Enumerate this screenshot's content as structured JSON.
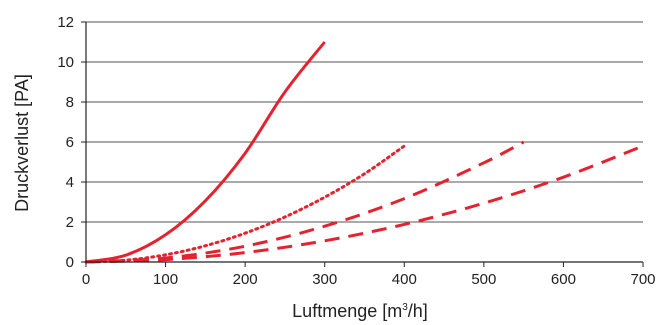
{
  "chart_data": {
    "type": "line",
    "xlabel": "Luftmenge [m",
    "xlabel_sup": "3",
    "xlabel_suffix": "/h]",
    "ylabel": "Druckverlust [PA]",
    "xlim": [
      0,
      700
    ],
    "ylim": [
      0,
      12
    ],
    "x_ticks": [
      "0",
      "100",
      "200",
      "300",
      "400",
      "500",
      "600",
      "700"
    ],
    "y_ticks": [
      "0",
      "2",
      "4",
      "6",
      "8",
      "10",
      "12"
    ],
    "grid": "horizontal",
    "colors": {
      "series": "#e3232f",
      "grid": "#555555",
      "axis": "#222222"
    },
    "series": [
      {
        "style": "solid",
        "x": [
          0,
          50,
          100,
          150,
          200,
          250,
          300
        ],
        "y": [
          0,
          0.34,
          1.36,
          3.06,
          5.44,
          8.5,
          11.0
        ]
      },
      {
        "style": "dotted",
        "x": [
          0,
          50,
          100,
          150,
          200,
          250,
          300,
          350,
          400
        ],
        "y": [
          0,
          0.09,
          0.36,
          0.81,
          1.44,
          2.25,
          3.24,
          4.41,
          5.8
        ]
      },
      {
        "style": "dashed",
        "x": [
          0,
          100,
          200,
          300,
          400,
          500,
          550
        ],
        "y": [
          0,
          0.2,
          0.79,
          1.79,
          3.17,
          4.96,
          6.0
        ]
      },
      {
        "style": "dashed",
        "x": [
          0,
          100,
          200,
          300,
          400,
          500,
          600,
          700
        ],
        "y": [
          0,
          0.12,
          0.47,
          1.06,
          1.88,
          2.94,
          4.24,
          5.8
        ]
      }
    ]
  }
}
